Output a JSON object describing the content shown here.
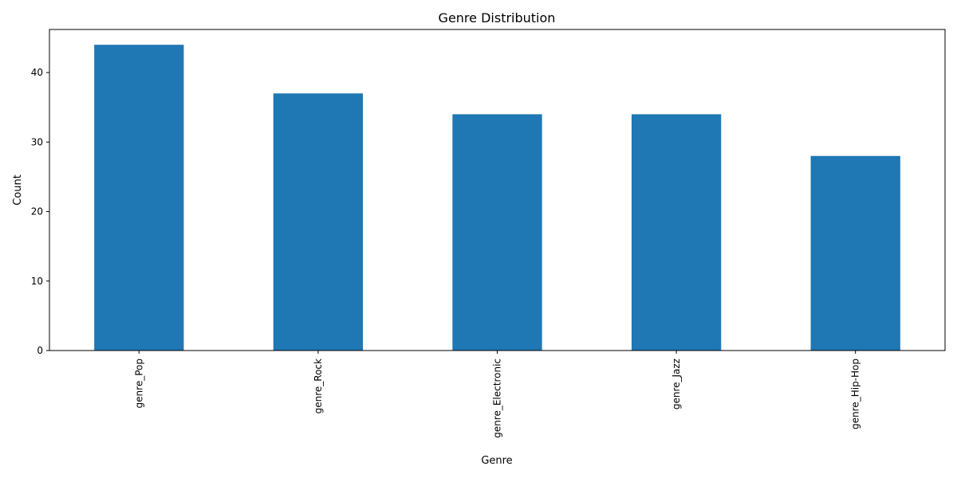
{
  "chart_data": {
    "type": "bar",
    "title": "Genre Distribution",
    "xlabel": "Genre",
    "ylabel": "Count",
    "categories": [
      "genre_Pop",
      "genre_Rock",
      "genre_Electronic",
      "genre_Jazz",
      "genre_Hip-Hop"
    ],
    "values": [
      44,
      37,
      34,
      34,
      28
    ],
    "ylim": [
      0,
      46.2
    ],
    "yticks": [
      0,
      10,
      20,
      30,
      40
    ],
    "tick_label_rotation": "vertical",
    "grid": false,
    "legend": "none",
    "bar_color": "#1f77b4"
  }
}
